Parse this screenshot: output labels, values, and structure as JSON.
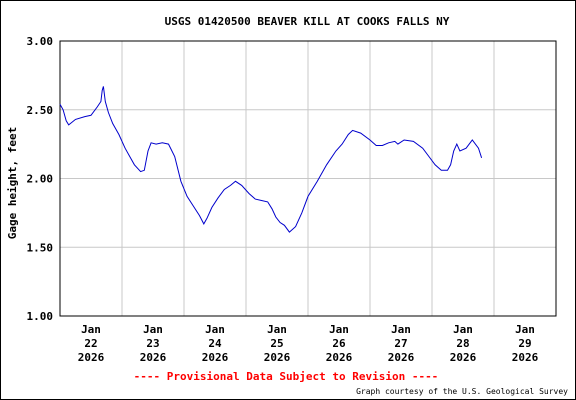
{
  "chart_data": {
    "type": "line",
    "title": "USGS 01420500 BEAVER KILL AT COOKS FALLS NY",
    "xlabel": "",
    "ylabel": "Gage height, feet",
    "ylim": [
      1.0,
      3.0
    ],
    "xlim": [
      0,
      8
    ],
    "grid": true,
    "yticks": [
      "1.00",
      "1.50",
      "2.00",
      "2.50",
      "3.00"
    ],
    "xticks": [
      {
        "x": 0.5,
        "lines": [
          "Jan",
          "22",
          "2026"
        ]
      },
      {
        "x": 1.5,
        "lines": [
          "Jan",
          "23",
          "2026"
        ]
      },
      {
        "x": 2.5,
        "lines": [
          "Jan",
          "24",
          "2026"
        ]
      },
      {
        "x": 3.5,
        "lines": [
          "Jan",
          "25",
          "2026"
        ]
      },
      {
        "x": 4.5,
        "lines": [
          "Jan",
          "26",
          "2026"
        ]
      },
      {
        "x": 5.5,
        "lines": [
          "Jan",
          "27",
          "2026"
        ]
      },
      {
        "x": 6.5,
        "lines": [
          "Jan",
          "28",
          "2026"
        ]
      },
      {
        "x": 7.5,
        "lines": [
          "Jan",
          "29",
          "2026"
        ]
      }
    ],
    "series": [
      {
        "color": "#0000cc",
        "points": [
          [
            0.0,
            2.54
          ],
          [
            0.05,
            2.5
          ],
          [
            0.1,
            2.42
          ],
          [
            0.14,
            2.39
          ],
          [
            0.25,
            2.43
          ],
          [
            0.4,
            2.45
          ],
          [
            0.5,
            2.46
          ],
          [
            0.6,
            2.52
          ],
          [
            0.66,
            2.56
          ],
          [
            0.68,
            2.64
          ],
          [
            0.7,
            2.67
          ],
          [
            0.73,
            2.56
          ],
          [
            0.78,
            2.48
          ],
          [
            0.85,
            2.4
          ],
          [
            0.95,
            2.32
          ],
          [
            1.05,
            2.22
          ],
          [
            1.2,
            2.1
          ],
          [
            1.3,
            2.05
          ],
          [
            1.36,
            2.06
          ],
          [
            1.42,
            2.2
          ],
          [
            1.47,
            2.26
          ],
          [
            1.55,
            2.25
          ],
          [
            1.65,
            2.26
          ],
          [
            1.75,
            2.25
          ],
          [
            1.85,
            2.16
          ],
          [
            1.95,
            1.98
          ],
          [
            2.05,
            1.87
          ],
          [
            2.15,
            1.8
          ],
          [
            2.25,
            1.73
          ],
          [
            2.32,
            1.67
          ],
          [
            2.37,
            1.71
          ],
          [
            2.45,
            1.79
          ],
          [
            2.55,
            1.86
          ],
          [
            2.65,
            1.92
          ],
          [
            2.75,
            1.95
          ],
          [
            2.83,
            1.98
          ],
          [
            2.93,
            1.95
          ],
          [
            3.05,
            1.89
          ],
          [
            3.15,
            1.85
          ],
          [
            3.25,
            1.84
          ],
          [
            3.35,
            1.83
          ],
          [
            3.42,
            1.78
          ],
          [
            3.48,
            1.72
          ],
          [
            3.55,
            1.68
          ],
          [
            3.62,
            1.66
          ],
          [
            3.7,
            1.61
          ],
          [
            3.8,
            1.65
          ],
          [
            3.9,
            1.75
          ],
          [
            4.0,
            1.87
          ],
          [
            4.15,
            1.98
          ],
          [
            4.3,
            2.1
          ],
          [
            4.45,
            2.2
          ],
          [
            4.55,
            2.25
          ],
          [
            4.65,
            2.32
          ],
          [
            4.72,
            2.35
          ],
          [
            4.85,
            2.33
          ],
          [
            5.0,
            2.28
          ],
          [
            5.1,
            2.24
          ],
          [
            5.2,
            2.24
          ],
          [
            5.3,
            2.26
          ],
          [
            5.4,
            2.27
          ],
          [
            5.45,
            2.25
          ],
          [
            5.55,
            2.28
          ],
          [
            5.7,
            2.27
          ],
          [
            5.85,
            2.22
          ],
          [
            5.95,
            2.16
          ],
          [
            6.05,
            2.1
          ],
          [
            6.15,
            2.06
          ],
          [
            6.25,
            2.06
          ],
          [
            6.3,
            2.1
          ],
          [
            6.35,
            2.2
          ],
          [
            6.4,
            2.25
          ],
          [
            6.45,
            2.2
          ],
          [
            6.55,
            2.22
          ],
          [
            6.65,
            2.28
          ],
          [
            6.75,
            2.22
          ],
          [
            6.8,
            2.15
          ]
        ]
      }
    ]
  },
  "footer": {
    "provisional": "---- Provisional Data Subject to Revision ----",
    "credit": "Graph courtesy of the U.S. Geological Survey"
  },
  "colors": {
    "line": "#0000cc",
    "grid": "#c8c8c8",
    "provisional": "#ff0000"
  }
}
